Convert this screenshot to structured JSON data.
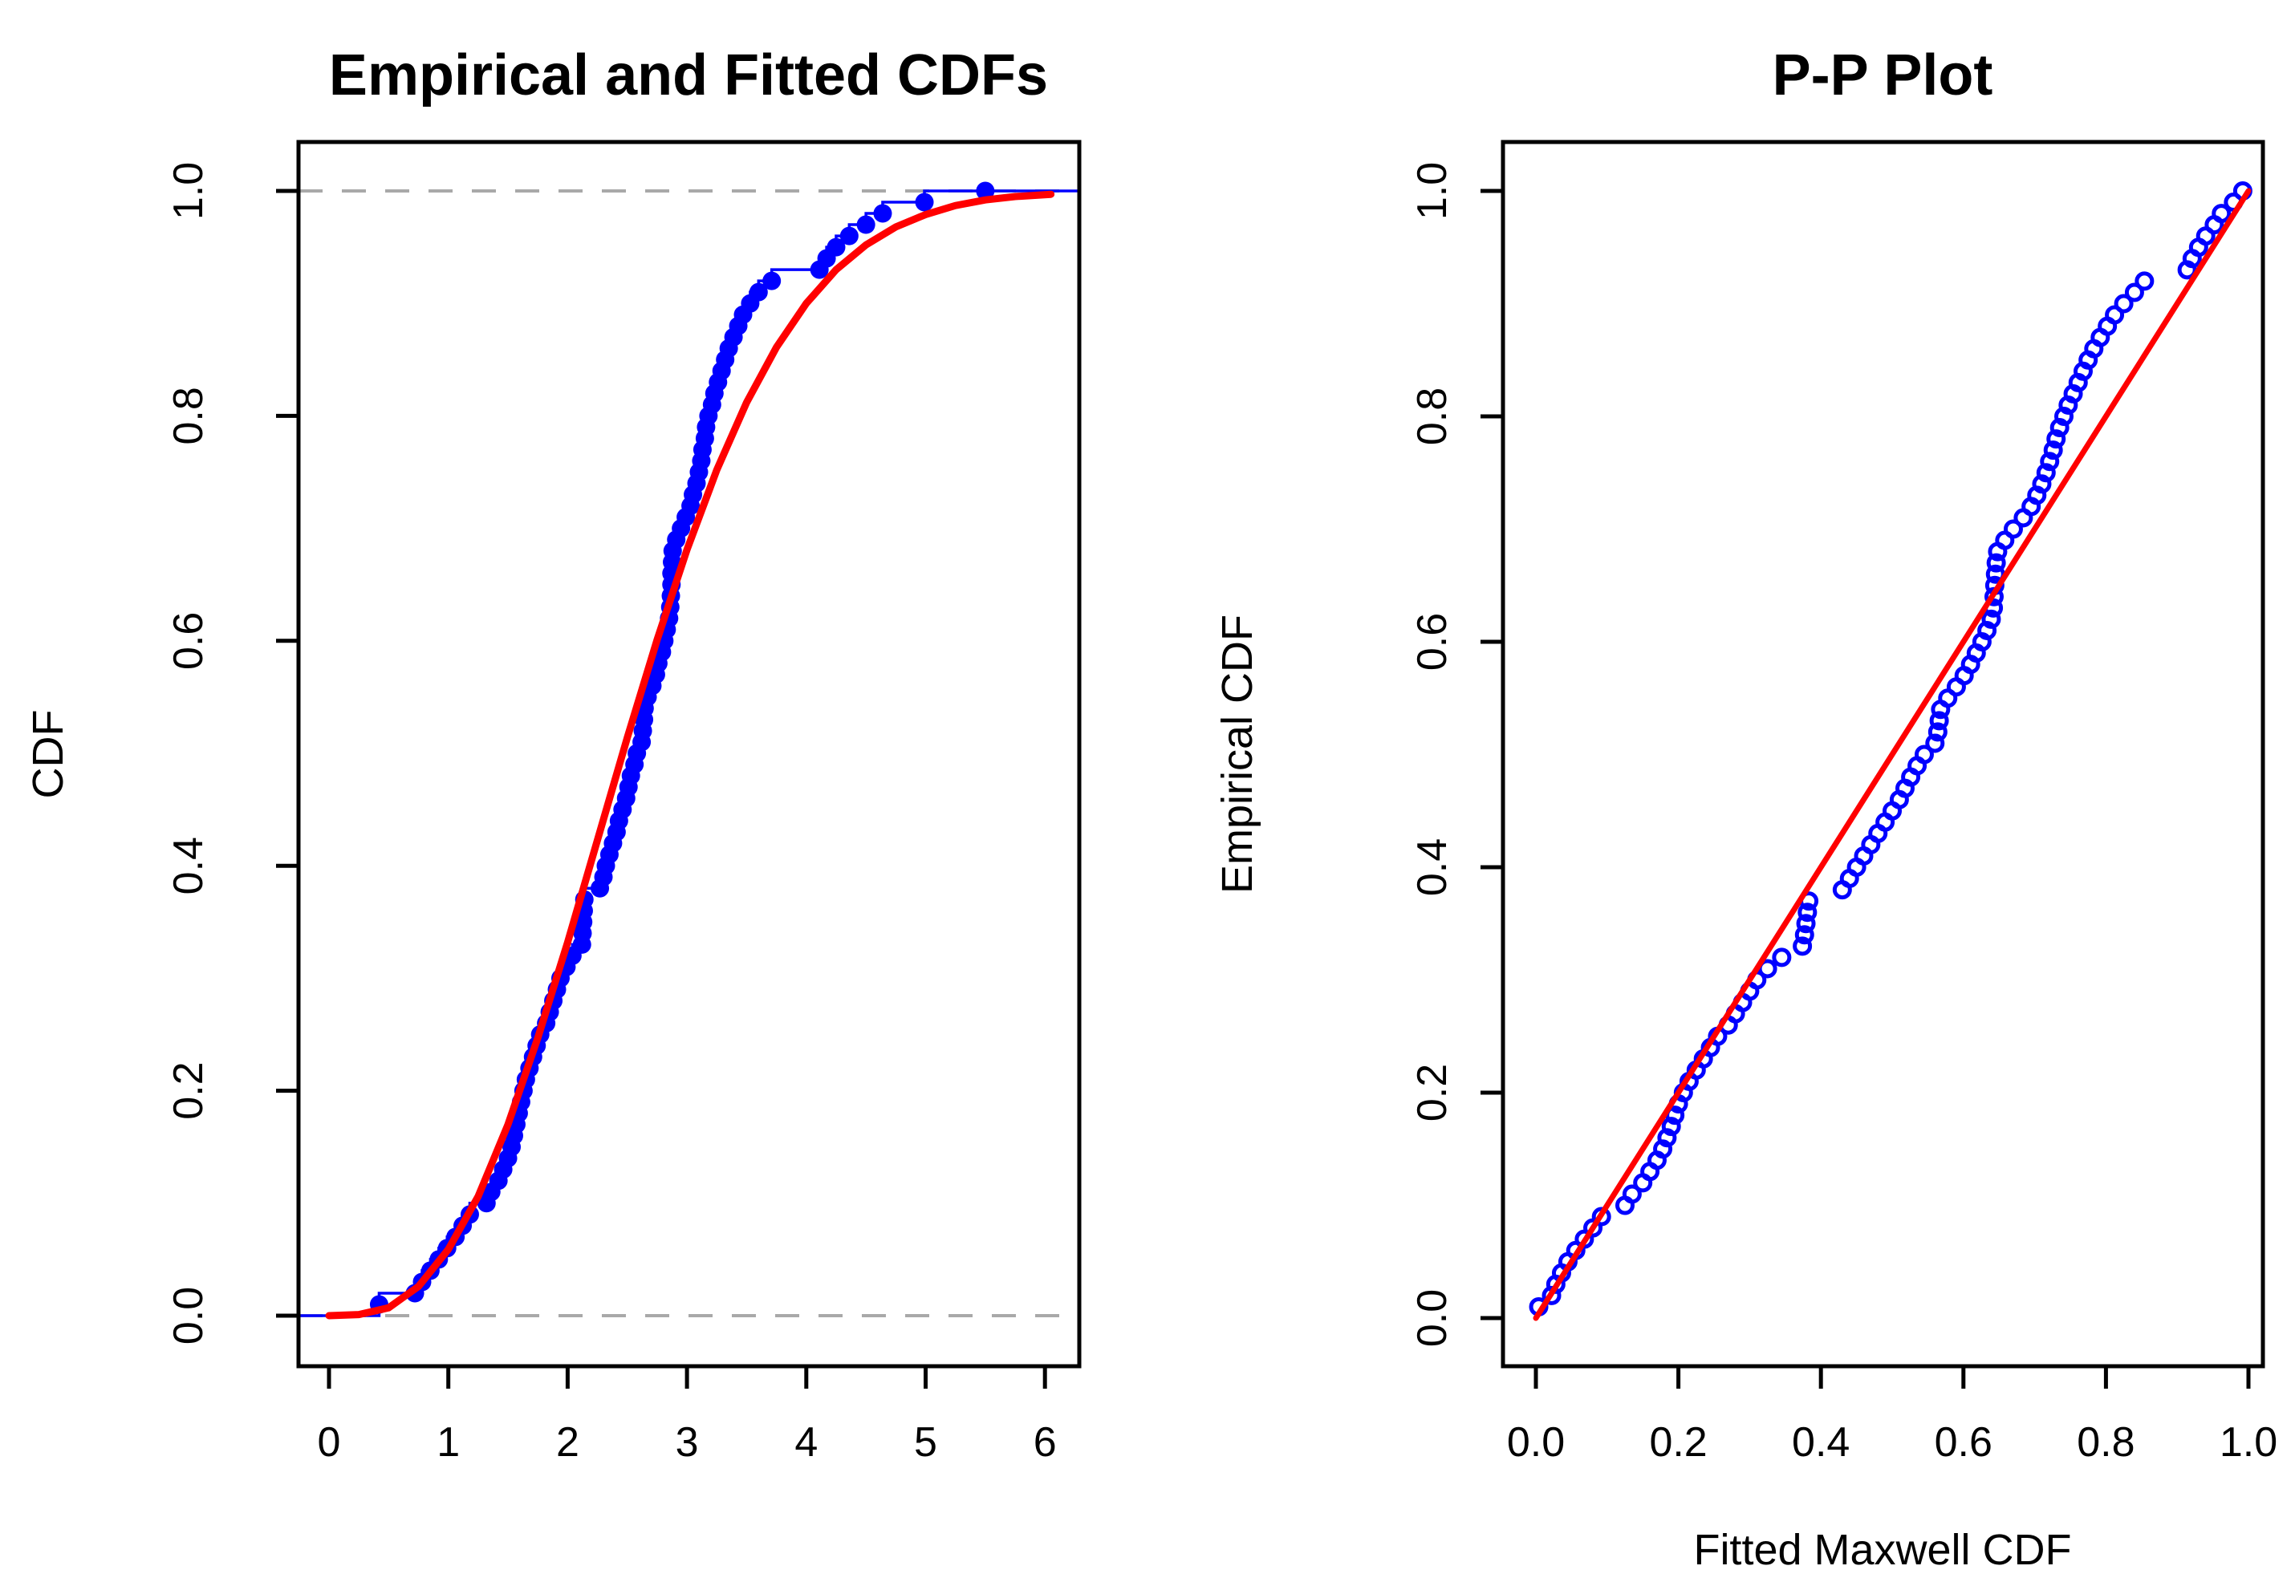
{
  "figure": {
    "background": "#FFFFFF",
    "point_color": "#0000FF",
    "fit_color": "#FF0000",
    "ref_line_color": "#A9A9A9",
    "axis_color": "#000000"
  },
  "chart_data": [
    {
      "id": "ecdf-vs-fitted",
      "type": "line",
      "title": "Empirical and Fitted CDFs",
      "xlabel": "",
      "ylabel": "CDF",
      "xlim": [
        0,
        6
      ],
      "ylim": [
        0,
        1
      ],
      "grid": false,
      "legend": "none",
      "xticks": {
        "values": [
          0,
          1,
          2,
          3,
          4,
          5,
          6
        ],
        "labels": [
          "0",
          "1",
          "2",
          "3",
          "4",
          "5",
          "6"
        ]
      },
      "yticks": {
        "values": [
          0,
          0.2,
          0.4,
          0.6,
          0.8,
          1.0
        ],
        "labels": [
          "0.0",
          "0.2",
          "0.4",
          "0.6",
          "0.8",
          "1.0"
        ]
      },
      "ref_lines_y": [
        0,
        1
      ],
      "series": [
        {
          "name": "empirical-cdf-points",
          "type": "step-scatter",
          "color": "#0000FF",
          "points": [
            [
              0.42,
              0.01
            ],
            [
              0.72,
              0.02
            ],
            [
              0.78,
              0.03
            ],
            [
              0.85,
              0.04
            ],
            [
              0.92,
              0.05
            ],
            [
              0.99,
              0.06
            ],
            [
              1.06,
              0.07
            ],
            [
              1.12,
              0.08
            ],
            [
              1.18,
              0.09
            ],
            [
              1.32,
              0.1
            ],
            [
              1.36,
              0.11
            ],
            [
              1.42,
              0.12
            ],
            [
              1.46,
              0.13
            ],
            [
              1.5,
              0.14
            ],
            [
              1.53,
              0.15
            ],
            [
              1.55,
              0.16
            ],
            [
              1.57,
              0.17
            ],
            [
              1.59,
              0.18
            ],
            [
              1.61,
              0.19
            ],
            [
              1.63,
              0.2
            ],
            [
              1.65,
              0.21
            ],
            [
              1.68,
              0.22
            ],
            [
              1.71,
              0.23
            ],
            [
              1.74,
              0.24
            ],
            [
              1.77,
              0.25
            ],
            [
              1.82,
              0.26
            ],
            [
              1.85,
              0.27
            ],
            [
              1.88,
              0.28
            ],
            [
              1.91,
              0.29
            ],
            [
              1.94,
              0.3
            ],
            [
              1.99,
              0.31
            ],
            [
              2.04,
              0.32
            ],
            [
              2.12,
              0.33
            ],
            [
              2.125,
              0.34
            ],
            [
              2.13,
              0.35
            ],
            [
              2.135,
              0.36
            ],
            [
              2.14,
              0.37
            ],
            [
              2.27,
              0.38
            ],
            [
              2.3,
              0.39
            ],
            [
              2.32,
              0.4
            ],
            [
              2.35,
              0.41
            ],
            [
              2.38,
              0.42
            ],
            [
              2.41,
              0.43
            ],
            [
              2.43,
              0.44
            ],
            [
              2.46,
              0.45
            ],
            [
              2.49,
              0.46
            ],
            [
              2.51,
              0.47
            ],
            [
              2.53,
              0.48
            ],
            [
              2.56,
              0.49
            ],
            [
              2.58,
              0.5
            ],
            [
              2.62,
              0.51
            ],
            [
              2.63,
              0.52
            ],
            [
              2.64,
              0.53
            ],
            [
              2.645,
              0.54
            ],
            [
              2.67,
              0.55
            ],
            [
              2.71,
              0.56
            ],
            [
              2.74,
              0.57
            ],
            [
              2.76,
              0.58
            ],
            [
              2.79,
              0.59
            ],
            [
              2.81,
              0.6
            ],
            [
              2.83,
              0.61
            ],
            [
              2.85,
              0.62
            ],
            [
              2.86,
              0.63
            ],
            [
              2.865,
              0.64
            ],
            [
              2.87,
              0.65
            ],
            [
              2.87,
              0.66
            ],
            [
              2.875,
              0.67
            ],
            [
              2.88,
              0.68
            ],
            [
              2.91,
              0.69
            ],
            [
              2.95,
              0.7
            ],
            [
              2.99,
              0.71
            ],
            [
              3.03,
              0.72
            ],
            [
              3.05,
              0.73
            ],
            [
              3.08,
              0.74
            ],
            [
              3.1,
              0.75
            ],
            [
              3.12,
              0.76
            ],
            [
              3.13,
              0.77
            ],
            [
              3.15,
              0.78
            ],
            [
              3.16,
              0.79
            ],
            [
              3.18,
              0.8
            ],
            [
              3.21,
              0.81
            ],
            [
              3.23,
              0.82
            ],
            [
              3.26,
              0.83
            ],
            [
              3.29,
              0.84
            ],
            [
              3.32,
              0.85
            ],
            [
              3.35,
              0.86
            ],
            [
              3.39,
              0.87
            ],
            [
              3.43,
              0.88
            ],
            [
              3.47,
              0.89
            ],
            [
              3.53,
              0.9
            ],
            [
              3.6,
              0.91
            ],
            [
              3.71,
              0.92
            ],
            [
              4.11,
              0.93
            ],
            [
              4.17,
              0.94
            ],
            [
              4.25,
              0.95
            ],
            [
              4.36,
              0.96
            ],
            [
              4.5,
              0.97
            ],
            [
              4.64,
              0.98
            ],
            [
              4.99,
              0.99
            ],
            [
              5.5,
              1.0
            ]
          ]
        },
        {
          "name": "fitted-maxwell-cdf-curve",
          "type": "line",
          "color": "#FF0000",
          "points": [
            [
              0,
              0
            ],
            [
              0.25,
              0.001
            ],
            [
              0.5,
              0.007
            ],
            [
              0.75,
              0.026
            ],
            [
              1.0,
              0.059
            ],
            [
              1.25,
              0.106
            ],
            [
              1.5,
              0.17
            ],
            [
              1.75,
              0.247
            ],
            [
              2.0,
              0.332
            ],
            [
              2.25,
              0.423
            ],
            [
              2.5,
              0.514
            ],
            [
              2.75,
              0.601
            ],
            [
              3.0,
              0.681
            ],
            [
              3.25,
              0.752
            ],
            [
              3.5,
              0.812
            ],
            [
              3.75,
              0.861
            ],
            [
              4.0,
              0.9
            ],
            [
              4.25,
              0.93
            ],
            [
              4.5,
              0.952
            ],
            [
              4.75,
              0.968
            ],
            [
              5.0,
              0.979
            ],
            [
              5.25,
              0.987
            ],
            [
              5.5,
              0.992
            ],
            [
              5.75,
              0.995
            ],
            [
              6.05,
              0.997
            ]
          ]
        }
      ]
    },
    {
      "id": "pp-plot",
      "type": "scatter",
      "title": "P-P Plot",
      "xlabel": "Fitted Maxwell CDF",
      "ylabel": "Empirical CDF",
      "xlim": [
        0,
        1
      ],
      "ylim": [
        0,
        1
      ],
      "grid": false,
      "legend": "none",
      "xticks": {
        "values": [
          0,
          0.2,
          0.4,
          0.6,
          0.8,
          1.0
        ],
        "labels": [
          "0.0",
          "0.2",
          "0.4",
          "0.6",
          "0.8",
          "1.0"
        ]
      },
      "yticks": {
        "values": [
          0,
          0.2,
          0.4,
          0.6,
          0.8,
          1.0
        ],
        "labels": [
          "0.0",
          "0.2",
          "0.4",
          "0.6",
          "0.8",
          "1.0"
        ]
      },
      "series": [
        {
          "name": "pp-points",
          "type": "open-scatter",
          "color": "#0000FF",
          "points": [
            [
              0.004,
              0.01
            ],
            [
              0.022,
              0.02
            ],
            [
              0.028,
              0.03
            ],
            [
              0.036,
              0.04
            ],
            [
              0.045,
              0.05
            ],
            [
              0.056,
              0.06
            ],
            [
              0.068,
              0.07
            ],
            [
              0.08,
              0.08
            ],
            [
              0.092,
              0.09
            ],
            [
              0.125,
              0.1
            ],
            [
              0.135,
              0.11
            ],
            [
              0.15,
              0.12
            ],
            [
              0.16,
              0.13
            ],
            [
              0.17,
              0.14
            ],
            [
              0.178,
              0.15
            ],
            [
              0.184,
              0.16
            ],
            [
              0.19,
              0.17
            ],
            [
              0.195,
              0.18
            ],
            [
              0.2,
              0.19
            ],
            [
              0.207,
              0.2
            ],
            [
              0.215,
              0.21
            ],
            [
              0.225,
              0.22
            ],
            [
              0.235,
              0.23
            ],
            [
              0.245,
              0.24
            ],
            [
              0.255,
              0.25
            ],
            [
              0.27,
              0.26
            ],
            [
              0.28,
              0.27
            ],
            [
              0.29,
              0.28
            ],
            [
              0.3,
              0.29
            ],
            [
              0.31,
              0.3
            ],
            [
              0.325,
              0.31
            ],
            [
              0.345,
              0.32
            ],
            [
              0.374,
              0.33
            ],
            [
              0.377,
              0.34
            ],
            [
              0.379,
              0.35
            ],
            [
              0.381,
              0.36
            ],
            [
              0.383,
              0.37
            ],
            [
              0.43,
              0.38
            ],
            [
              0.44,
              0.39
            ],
            [
              0.45,
              0.4
            ],
            [
              0.46,
              0.41
            ],
            [
              0.47,
              0.42
            ],
            [
              0.48,
              0.43
            ],
            [
              0.49,
              0.44
            ],
            [
              0.5,
              0.45
            ],
            [
              0.51,
              0.46
            ],
            [
              0.518,
              0.47
            ],
            [
              0.526,
              0.48
            ],
            [
              0.535,
              0.49
            ],
            [
              0.545,
              0.5
            ],
            [
              0.56,
              0.51
            ],
            [
              0.564,
              0.52
            ],
            [
              0.566,
              0.53
            ],
            [
              0.568,
              0.54
            ],
            [
              0.578,
              0.55
            ],
            [
              0.59,
              0.56
            ],
            [
              0.601,
              0.57
            ],
            [
              0.61,
              0.58
            ],
            [
              0.618,
              0.59
            ],
            [
              0.626,
              0.6
            ],
            [
              0.633,
              0.61
            ],
            [
              0.639,
              0.62
            ],
            [
              0.642,
              0.63
            ],
            [
              0.643,
              0.64
            ],
            [
              0.644,
              0.65
            ],
            [
              0.645,
              0.66
            ],
            [
              0.646,
              0.67
            ],
            [
              0.648,
              0.68
            ],
            [
              0.658,
              0.69
            ],
            [
              0.67,
              0.7
            ],
            [
              0.684,
              0.71
            ],
            [
              0.695,
              0.72
            ],
            [
              0.703,
              0.73
            ],
            [
              0.71,
              0.74
            ],
            [
              0.716,
              0.75
            ],
            [
              0.721,
              0.76
            ],
            [
              0.726,
              0.77
            ],
            [
              0.73,
              0.78
            ],
            [
              0.735,
              0.79
            ],
            [
              0.741,
              0.8
            ],
            [
              0.747,
              0.81
            ],
            [
              0.754,
              0.82
            ],
            [
              0.761,
              0.83
            ],
            [
              0.768,
              0.84
            ],
            [
              0.775,
              0.85
            ],
            [
              0.783,
              0.86
            ],
            [
              0.792,
              0.87
            ],
            [
              0.802,
              0.88
            ],
            [
              0.812,
              0.89
            ],
            [
              0.825,
              0.9
            ],
            [
              0.84,
              0.91
            ],
            [
              0.854,
              0.92
            ],
            [
              0.914,
              0.93
            ],
            [
              0.921,
              0.94
            ],
            [
              0.93,
              0.95
            ],
            [
              0.94,
              0.96
            ],
            [
              0.952,
              0.97
            ],
            [
              0.962,
              0.98
            ],
            [
              0.979,
              0.99
            ],
            [
              0.992,
              1.0
            ]
          ]
        },
        {
          "name": "reference-diagonal",
          "type": "line",
          "color": "#FF0000",
          "points": [
            [
              0,
              0
            ],
            [
              1,
              1
            ]
          ]
        }
      ]
    }
  ]
}
